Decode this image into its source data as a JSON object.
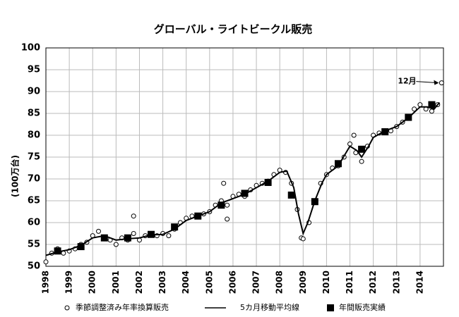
{
  "chart_data": {
    "type": "line",
    "title": "グローバル・ライトビークル販売",
    "y_label": "(100万台)",
    "xlim": [
      1998,
      2015
    ],
    "xticks": [
      1998,
      1999,
      2000,
      2001,
      2002,
      2003,
      2004,
      2005,
      2006,
      2007,
      2008,
      2009,
      2010,
      2011,
      2012,
      2013,
      2014
    ],
    "ylim": [
      50,
      100
    ],
    "yticks": [
      50,
      55,
      60,
      65,
      70,
      75,
      80,
      85,
      90,
      95,
      100
    ],
    "grid": true,
    "series": [
      {
        "name": "季節調整済み年率換算販売",
        "type": "scatter",
        "color": "#000000",
        "x": [
          1998.0,
          1998.25,
          1998.5,
          1998.75,
          1999.0,
          1999.25,
          1999.5,
          1999.75,
          2000.0,
          2000.25,
          2000.5,
          2000.75,
          2001.0,
          2001.25,
          2001.5,
          2001.75,
          2001.75,
          2002.0,
          2002.25,
          2002.5,
          2002.75,
          2003.0,
          2003.25,
          2003.5,
          2003.75,
          2004.0,
          2004.25,
          2004.5,
          2004.75,
          2005.0,
          2005.25,
          2005.5,
          2005.6,
          2005.75,
          2005.75,
          2006.0,
          2006.25,
          2006.5,
          2006.75,
          2007.0,
          2007.25,
          2007.5,
          2007.75,
          2008.0,
          2008.25,
          2008.5,
          2008.75,
          2008.92,
          2009.0,
          2009.25,
          2009.5,
          2009.75,
          2010.0,
          2010.25,
          2010.5,
          2010.75,
          2011.0,
          2011.17,
          2011.25,
          2011.5,
          2011.75,
          2012.0,
          2012.25,
          2012.5,
          2012.75,
          2013.0,
          2013.25,
          2013.5,
          2013.75,
          2014.0,
          2014.25,
          2014.5,
          2014.75,
          2014.92
        ],
        "values": [
          51,
          53,
          54,
          53,
          53.5,
          54,
          55,
          55.5,
          57,
          58,
          56.5,
          56,
          55,
          56.5,
          56,
          57.5,
          61.5,
          56,
          57,
          57.5,
          57,
          57.5,
          57,
          58.5,
          60,
          61,
          61.5,
          61.5,
          62,
          62.5,
          64,
          65,
          69,
          64,
          60.8,
          66,
          66.5,
          66,
          67.5,
          68.5,
          69,
          69.5,
          71,
          72,
          71.5,
          69,
          63,
          56.5,
          56.3,
          60,
          65,
          69,
          71,
          72.5,
          73,
          75,
          78,
          80,
          76,
          74,
          77.5,
          80,
          80.5,
          81,
          81,
          82,
          83,
          84,
          86,
          87,
          86,
          85.5,
          87,
          92
        ]
      },
      {
        "name": "5カ月移動平均線",
        "type": "line",
        "color": "#000000",
        "x": [
          1998,
          1998.5,
          1999,
          1999.5,
          2000,
          2000.5,
          2001,
          2001.5,
          2002,
          2002.5,
          2003,
          2003.5,
          2004,
          2004.5,
          2005,
          2005.5,
          2006,
          2006.5,
          2007,
          2007.5,
          2008,
          2008.3,
          2008.6,
          2008.8,
          2009.0,
          2009.2,
          2009.5,
          2009.8,
          2010,
          2010.5,
          2011,
          2011.3,
          2011.5,
          2011.8,
          2012,
          2012.5,
          2013,
          2013.5,
          2014,
          2014.3,
          2014.6,
          2014.83
        ],
        "values": [
          52.5,
          53.3,
          53.8,
          54.8,
          56.5,
          57,
          56,
          56.3,
          56.5,
          57.2,
          57.3,
          58.5,
          60.5,
          61.5,
          62.5,
          64.5,
          65.5,
          66.5,
          68,
          69.5,
          71.5,
          71.8,
          68,
          62,
          57.5,
          60,
          65,
          69,
          71,
          73,
          77.5,
          76.5,
          75,
          77.5,
          79.5,
          81,
          82,
          84,
          86.5,
          86.5,
          86,
          87.5
        ]
      },
      {
        "name": "年間販売実績",
        "type": "square",
        "color": "#000000",
        "x": [
          1998.5,
          1999.5,
          2000.5,
          2001.5,
          2002.5,
          2003.5,
          2004.5,
          2005.5,
          2006.5,
          2007.5,
          2008.5,
          2009.5,
          2010.5,
          2011.5,
          2012.5,
          2013.5,
          2014.5
        ],
        "values": [
          53.5,
          54.5,
          56.5,
          56.5,
          57.3,
          59,
          61.5,
          64,
          66.7,
          69.2,
          66.3,
          64.8,
          73.5,
          76.8,
          80.8,
          84.1,
          87
        ]
      }
    ],
    "annotation": {
      "text": "12月",
      "x": 2014.92,
      "y": 92
    }
  }
}
